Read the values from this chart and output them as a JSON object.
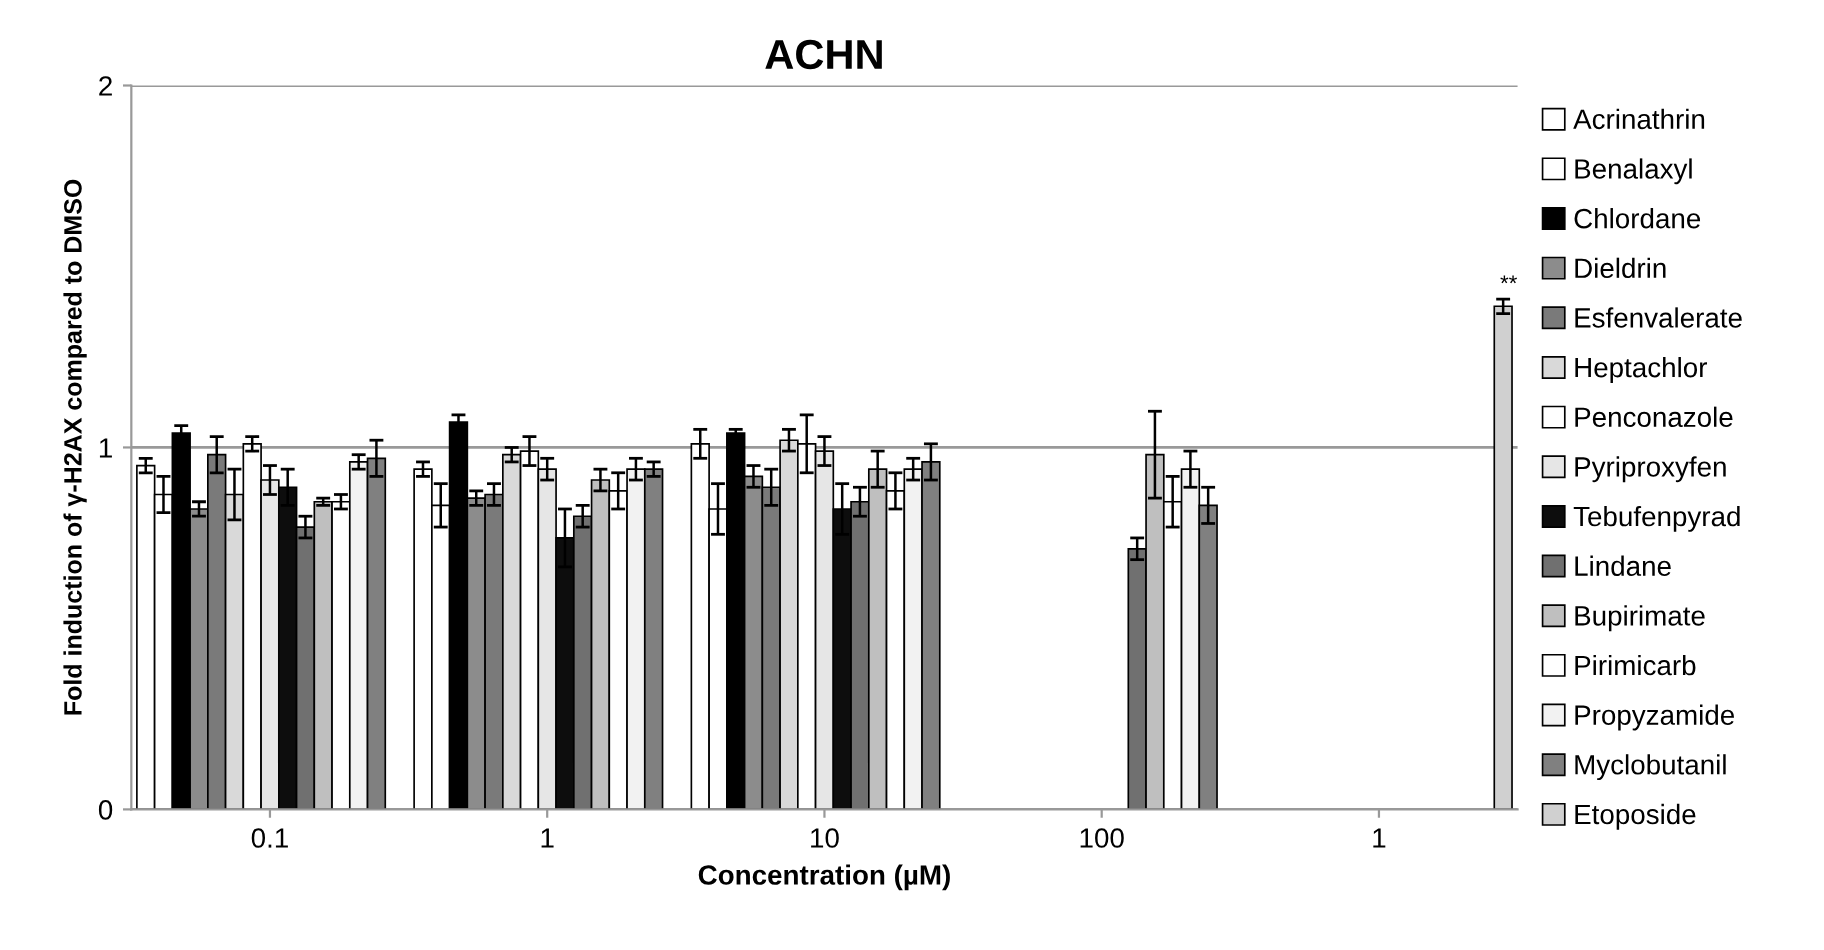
{
  "chart_data": {
    "type": "bar",
    "title": "ACHN",
    "xlabel": "Concentration (µM)",
    "ylabel": "Fold induction of γ-H2AX compared to DMSO",
    "categories": [
      "0.1",
      "1",
      "10",
      "100",
      "1"
    ],
    "ylim": [
      0,
      2
    ],
    "yticks": [
      0,
      1,
      2
    ],
    "grid": "y",
    "legend": "right",
    "series": [
      {
        "name": "Acrinathrin",
        "color": "#ffffff",
        "values": [
          0.95,
          0.94,
          1.01,
          null,
          null
        ],
        "errors": [
          0.02,
          0.02,
          0.04,
          null,
          null
        ]
      },
      {
        "name": "Benalaxyl",
        "color": "#ffffff",
        "values": [
          0.87,
          0.84,
          0.83,
          null,
          null
        ],
        "errors": [
          0.05,
          0.06,
          0.07,
          null,
          null
        ]
      },
      {
        "name": "Chlordane",
        "color": "#000000",
        "values": [
          1.04,
          1.07,
          1.04,
          null,
          null
        ],
        "errors": [
          0.02,
          0.02,
          0.01,
          null,
          null
        ]
      },
      {
        "name": "Dieldrin",
        "color": "#8c8c8c",
        "values": [
          0.83,
          0.86,
          0.92,
          null,
          null
        ],
        "errors": [
          0.02,
          0.02,
          0.03,
          null,
          null
        ]
      },
      {
        "name": "Esfenvalerate",
        "color": "#7a7a7a",
        "values": [
          0.98,
          0.87,
          0.89,
          null,
          null
        ],
        "errors": [
          0.05,
          0.03,
          0.05,
          null,
          null
        ]
      },
      {
        "name": "Heptachlor",
        "color": "#d9d9d9",
        "values": [
          0.87,
          0.98,
          1.02,
          null,
          null
        ],
        "errors": [
          0.07,
          0.02,
          0.03,
          null,
          null
        ]
      },
      {
        "name": "Penconazole",
        "color": "#ffffff",
        "values": [
          1.01,
          0.99,
          1.01,
          null,
          null
        ],
        "errors": [
          0.02,
          0.04,
          0.08,
          null,
          null
        ]
      },
      {
        "name": "Pyriproxyfen",
        "color": "#e6e6e6",
        "values": [
          0.91,
          0.94,
          0.99,
          null,
          null
        ],
        "errors": [
          0.04,
          0.03,
          0.04,
          null,
          null
        ]
      },
      {
        "name": "Tebufenpyrad",
        "color": "#0d0d0d",
        "values": [
          0.89,
          0.75,
          0.83,
          null,
          null
        ],
        "errors": [
          0.05,
          0.08,
          0.07,
          null,
          null
        ]
      },
      {
        "name": "Lindane",
        "color": "#707070",
        "values": [
          0.78,
          0.81,
          0.85,
          0.72,
          null
        ],
        "errors": [
          0.03,
          0.03,
          0.04,
          0.03,
          null
        ]
      },
      {
        "name": "Bupirimate",
        "color": "#bfbfbf",
        "values": [
          0.85,
          0.91,
          0.94,
          0.98,
          null
        ],
        "errors": [
          0.01,
          0.03,
          0.05,
          0.12,
          null
        ]
      },
      {
        "name": "Pirimicarb",
        "color": "#ffffff",
        "values": [
          0.85,
          0.88,
          0.88,
          0.85,
          null
        ],
        "errors": [
          0.02,
          0.05,
          0.05,
          0.07,
          null
        ]
      },
      {
        "name": "Propyzamide",
        "color": "#f2f2f2",
        "values": [
          0.96,
          0.94,
          0.94,
          0.94,
          null
        ],
        "errors": [
          0.02,
          0.03,
          0.03,
          0.05,
          null
        ]
      },
      {
        "name": "Myclobutanil",
        "color": "#808080",
        "values": [
          0.97,
          0.94,
          0.96,
          0.84,
          null
        ],
        "errors": [
          0.05,
          0.02,
          0.05,
          0.05,
          null
        ]
      },
      {
        "name": "Etoposide",
        "color": "#d0d0d0",
        "values": [
          null,
          null,
          null,
          null,
          1.39
        ],
        "errors": [
          null,
          null,
          null,
          null,
          0.02
        ]
      }
    ],
    "annotations": [
      "**"
    ]
  }
}
